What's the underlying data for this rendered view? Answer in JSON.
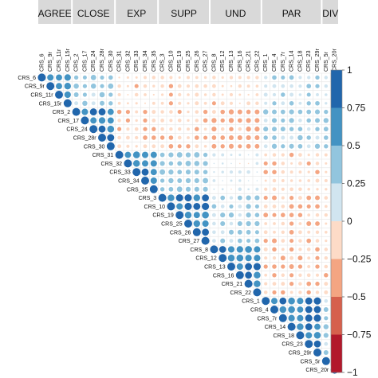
{
  "chart_data": {
    "type": "heatmap",
    "style": "upper-triangle correlogram with circles (size and color encode correlation)",
    "variables": [
      "CRS_6",
      "CRS_9r",
      "CRS_11r",
      "CRS_15r",
      "CRS_2",
      "CRS_17",
      "CRS_24",
      "CRS_28r",
      "CRS_30",
      "CRS_31",
      "CRS_32",
      "CRS_33",
      "CRS_34",
      "CRS_35",
      "CRS_3",
      "CRS_10",
      "CRS_19",
      "CRS_25",
      "CRS_26",
      "CRS_27",
      "CRS_8",
      "CRS_12",
      "CRS_13",
      "CRS_16",
      "CRS_21",
      "CRS_22",
      "CRS_1",
      "CRS_4",
      "CRS_7r",
      "CRS_14",
      "CRS_18",
      "CRS_23",
      "CRS_29r",
      "CRS_5r",
      "CRS_20r"
    ],
    "column_labels": [
      "CRS_6",
      "CRS_9r",
      "CRS_11r",
      "CRS_15r",
      "CRS_2",
      "CRS_17",
      "CRS_24",
      "CRS_28r",
      "CRS_30",
      "CRS_31",
      "CRS_32",
      "CRS_33",
      "CRS_34",
      "CRS_35",
      "CRS_3",
      "CRS_10",
      "CRS_19",
      "CRS_25",
      "CRS_26",
      "CRS_27",
      "CRS_8",
      "CRS_12",
      "CRS_13",
      "CRS_16",
      "CRS_21",
      "CRS_22",
      "CRS_1",
      "CRS_4",
      "CRS_7r",
      "CRS_14",
      "CRS_18",
      "CRS_23",
      "CRS_29r",
      "CRS_5r",
      "CRS_20r"
    ],
    "row_labels": [
      "CRS_6",
      "CRS_9r",
      "CRS_11r",
      "CRS_15r",
      "CRS_2",
      "CRS_17",
      "CRS_24",
      "CRS_28r",
      "CRS_30",
      "CRS_31",
      "CRS_32",
      "CRS_33",
      "CRS_34",
      "CRS_35",
      "CRS_3",
      "CRS_10",
      "CRS_19",
      "CRS_25",
      "CRS_26",
      "CRS_27",
      "CRS_8",
      "CRS_12",
      "CRS_13",
      "CRS_16",
      "CRS_21",
      "CRS_22",
      "CRS_1",
      "CRS_4",
      "CRS_7r",
      "CRS_14",
      "CRS_18",
      "CRS_23",
      "CRS_29r",
      "CRS_5r",
      "CRS_20r"
    ],
    "groups": [
      {
        "name": "AGREE",
        "size": 4
      },
      {
        "name": "CLOSE",
        "size": 5
      },
      {
        "name": "EXP",
        "size": 5
      },
      {
        "name": "SUPP",
        "size": 6
      },
      {
        "name": "UND",
        "size": 6
      },
      {
        "name": "PAR",
        "size": 7
      },
      {
        "name": "DIV",
        "size": 2
      }
    ],
    "value_range": [
      -1,
      1
    ],
    "within_group_correlation": 0.72,
    "between_group_correlation": [
      [
        0.72,
        0.35,
        -0.15,
        -0.2,
        -0.15,
        0.22,
        0.18
      ],
      [
        0.35,
        0.72,
        -0.22,
        -0.22,
        -0.3,
        0.32,
        0.3
      ],
      [
        -0.15,
        -0.22,
        0.72,
        0.38,
        0.1,
        -0.2,
        -0.15
      ],
      [
        -0.2,
        -0.22,
        0.38,
        0.72,
        0.3,
        -0.25,
        -0.15
      ],
      [
        -0.15,
        -0.3,
        0.1,
        0.3,
        0.72,
        -0.25,
        -0.2
      ],
      [
        0.22,
        0.32,
        -0.2,
        -0.25,
        -0.25,
        0.72,
        0.3
      ],
      [
        0.18,
        0.3,
        -0.15,
        -0.15,
        -0.2,
        0.3,
        0.72
      ]
    ],
    "legend": {
      "position": "right",
      "ticks": [
        1,
        0.75,
        0.5,
        0.25,
        0,
        -0.25,
        -0.5,
        -0.75,
        -1
      ],
      "tick_labels": [
        "1",
        "0.75",
        "0.5",
        "0.25",
        "0",
        "−0.25",
        "−0.5",
        "−0.75",
        "−1"
      ],
      "bands": [
        {
          "from": 0.75,
          "to": 1,
          "color": "#2166ac"
        },
        {
          "from": 0.5,
          "to": 0.75,
          "color": "#4393c3"
        },
        {
          "from": 0.25,
          "to": 0.5,
          "color": "#92c5de"
        },
        {
          "from": 0,
          "to": 0.25,
          "color": "#d1e5f0"
        },
        {
          "from": -0.25,
          "to": 0,
          "color": "#fddbc7"
        },
        {
          "from": -0.5,
          "to": -0.25,
          "color": "#f4a582"
        },
        {
          "from": -0.75,
          "to": -0.5,
          "color": "#d6604d"
        },
        {
          "from": -1,
          "to": -0.75,
          "color": "#b2182b"
        }
      ]
    },
    "group_header_color": "#d9d9d9",
    "grid": true
  }
}
